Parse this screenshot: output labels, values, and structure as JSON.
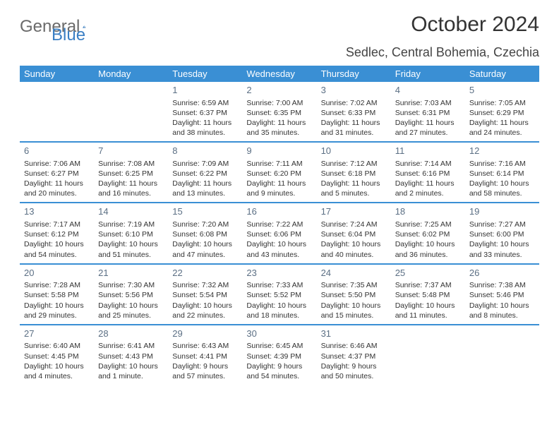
{
  "logo": {
    "text1": "General",
    "text2": "Blue"
  },
  "title": "October 2024",
  "location": "Sedlec, Central Bohemia, Czechia",
  "weekdays": [
    "Sunday",
    "Monday",
    "Tuesday",
    "Wednesday",
    "Thursday",
    "Friday",
    "Saturday"
  ],
  "colors": {
    "header_bg": "#3a8fd4",
    "header_text": "#ffffff",
    "border": "#3a8fd4",
    "daynum": "#5b6f84",
    "body_text": "#333333"
  },
  "weeks": [
    [
      null,
      null,
      {
        "n": "1",
        "sunrise": "Sunrise: 6:59 AM",
        "sunset": "Sunset: 6:37 PM",
        "daylight1": "Daylight: 11 hours",
        "daylight2": "and 38 minutes."
      },
      {
        "n": "2",
        "sunrise": "Sunrise: 7:00 AM",
        "sunset": "Sunset: 6:35 PM",
        "daylight1": "Daylight: 11 hours",
        "daylight2": "and 35 minutes."
      },
      {
        "n": "3",
        "sunrise": "Sunrise: 7:02 AM",
        "sunset": "Sunset: 6:33 PM",
        "daylight1": "Daylight: 11 hours",
        "daylight2": "and 31 minutes."
      },
      {
        "n": "4",
        "sunrise": "Sunrise: 7:03 AM",
        "sunset": "Sunset: 6:31 PM",
        "daylight1": "Daylight: 11 hours",
        "daylight2": "and 27 minutes."
      },
      {
        "n": "5",
        "sunrise": "Sunrise: 7:05 AM",
        "sunset": "Sunset: 6:29 PM",
        "daylight1": "Daylight: 11 hours",
        "daylight2": "and 24 minutes."
      }
    ],
    [
      {
        "n": "6",
        "sunrise": "Sunrise: 7:06 AM",
        "sunset": "Sunset: 6:27 PM",
        "daylight1": "Daylight: 11 hours",
        "daylight2": "and 20 minutes."
      },
      {
        "n": "7",
        "sunrise": "Sunrise: 7:08 AM",
        "sunset": "Sunset: 6:25 PM",
        "daylight1": "Daylight: 11 hours",
        "daylight2": "and 16 minutes."
      },
      {
        "n": "8",
        "sunrise": "Sunrise: 7:09 AM",
        "sunset": "Sunset: 6:22 PM",
        "daylight1": "Daylight: 11 hours",
        "daylight2": "and 13 minutes."
      },
      {
        "n": "9",
        "sunrise": "Sunrise: 7:11 AM",
        "sunset": "Sunset: 6:20 PM",
        "daylight1": "Daylight: 11 hours",
        "daylight2": "and 9 minutes."
      },
      {
        "n": "10",
        "sunrise": "Sunrise: 7:12 AM",
        "sunset": "Sunset: 6:18 PM",
        "daylight1": "Daylight: 11 hours",
        "daylight2": "and 5 minutes."
      },
      {
        "n": "11",
        "sunrise": "Sunrise: 7:14 AM",
        "sunset": "Sunset: 6:16 PM",
        "daylight1": "Daylight: 11 hours",
        "daylight2": "and 2 minutes."
      },
      {
        "n": "12",
        "sunrise": "Sunrise: 7:16 AM",
        "sunset": "Sunset: 6:14 PM",
        "daylight1": "Daylight: 10 hours",
        "daylight2": "and 58 minutes."
      }
    ],
    [
      {
        "n": "13",
        "sunrise": "Sunrise: 7:17 AM",
        "sunset": "Sunset: 6:12 PM",
        "daylight1": "Daylight: 10 hours",
        "daylight2": "and 54 minutes."
      },
      {
        "n": "14",
        "sunrise": "Sunrise: 7:19 AM",
        "sunset": "Sunset: 6:10 PM",
        "daylight1": "Daylight: 10 hours",
        "daylight2": "and 51 minutes."
      },
      {
        "n": "15",
        "sunrise": "Sunrise: 7:20 AM",
        "sunset": "Sunset: 6:08 PM",
        "daylight1": "Daylight: 10 hours",
        "daylight2": "and 47 minutes."
      },
      {
        "n": "16",
        "sunrise": "Sunrise: 7:22 AM",
        "sunset": "Sunset: 6:06 PM",
        "daylight1": "Daylight: 10 hours",
        "daylight2": "and 43 minutes."
      },
      {
        "n": "17",
        "sunrise": "Sunrise: 7:24 AM",
        "sunset": "Sunset: 6:04 PM",
        "daylight1": "Daylight: 10 hours",
        "daylight2": "and 40 minutes."
      },
      {
        "n": "18",
        "sunrise": "Sunrise: 7:25 AM",
        "sunset": "Sunset: 6:02 PM",
        "daylight1": "Daylight: 10 hours",
        "daylight2": "and 36 minutes."
      },
      {
        "n": "19",
        "sunrise": "Sunrise: 7:27 AM",
        "sunset": "Sunset: 6:00 PM",
        "daylight1": "Daylight: 10 hours",
        "daylight2": "and 33 minutes."
      }
    ],
    [
      {
        "n": "20",
        "sunrise": "Sunrise: 7:28 AM",
        "sunset": "Sunset: 5:58 PM",
        "daylight1": "Daylight: 10 hours",
        "daylight2": "and 29 minutes."
      },
      {
        "n": "21",
        "sunrise": "Sunrise: 7:30 AM",
        "sunset": "Sunset: 5:56 PM",
        "daylight1": "Daylight: 10 hours",
        "daylight2": "and 25 minutes."
      },
      {
        "n": "22",
        "sunrise": "Sunrise: 7:32 AM",
        "sunset": "Sunset: 5:54 PM",
        "daylight1": "Daylight: 10 hours",
        "daylight2": "and 22 minutes."
      },
      {
        "n": "23",
        "sunrise": "Sunrise: 7:33 AM",
        "sunset": "Sunset: 5:52 PM",
        "daylight1": "Daylight: 10 hours",
        "daylight2": "and 18 minutes."
      },
      {
        "n": "24",
        "sunrise": "Sunrise: 7:35 AM",
        "sunset": "Sunset: 5:50 PM",
        "daylight1": "Daylight: 10 hours",
        "daylight2": "and 15 minutes."
      },
      {
        "n": "25",
        "sunrise": "Sunrise: 7:37 AM",
        "sunset": "Sunset: 5:48 PM",
        "daylight1": "Daylight: 10 hours",
        "daylight2": "and 11 minutes."
      },
      {
        "n": "26",
        "sunrise": "Sunrise: 7:38 AM",
        "sunset": "Sunset: 5:46 PM",
        "daylight1": "Daylight: 10 hours",
        "daylight2": "and 8 minutes."
      }
    ],
    [
      {
        "n": "27",
        "sunrise": "Sunrise: 6:40 AM",
        "sunset": "Sunset: 4:45 PM",
        "daylight1": "Daylight: 10 hours",
        "daylight2": "and 4 minutes."
      },
      {
        "n": "28",
        "sunrise": "Sunrise: 6:41 AM",
        "sunset": "Sunset: 4:43 PM",
        "daylight1": "Daylight: 10 hours",
        "daylight2": "and 1 minute."
      },
      {
        "n": "29",
        "sunrise": "Sunrise: 6:43 AM",
        "sunset": "Sunset: 4:41 PM",
        "daylight1": "Daylight: 9 hours",
        "daylight2": "and 57 minutes."
      },
      {
        "n": "30",
        "sunrise": "Sunrise: 6:45 AM",
        "sunset": "Sunset: 4:39 PM",
        "daylight1": "Daylight: 9 hours",
        "daylight2": "and 54 minutes."
      },
      {
        "n": "31",
        "sunrise": "Sunrise: 6:46 AM",
        "sunset": "Sunset: 4:37 PM",
        "daylight1": "Daylight: 9 hours",
        "daylight2": "and 50 minutes."
      },
      null,
      null
    ]
  ]
}
